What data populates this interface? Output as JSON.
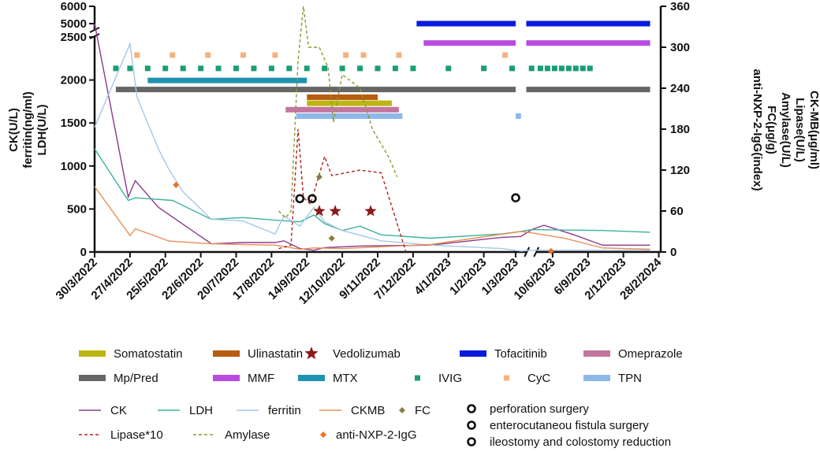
{
  "chart_data": {
    "type": "line",
    "title": "",
    "x_ticks": [
      "30/3/2022",
      "27/4/2022",
      "25/5/2022",
      "22/6/2022",
      "20/7/2022",
      "17/8/2022",
      "14/9/2022",
      "12/10/2022",
      "9/11/2022",
      "7/12/2022",
      "4/1/2023",
      "1/2/2023",
      "1/3/2023",
      "10/6/2023",
      "6/9/2023",
      "2/12/2023",
      "28/2/2024"
    ],
    "left_axis": {
      "label_lines": [
        "CK(U/L)",
        "ferritin(ng/ml)",
        "LDH(U/L)"
      ],
      "ticks": [
        0,
        500,
        1000,
        1500,
        2000,
        2500,
        5000,
        6000
      ],
      "break_between": [
        2500,
        5000
      ]
    },
    "right_axis": {
      "label_lines": [
        "CK-MB(μg/ml)",
        "Lipase(U/L)",
        "Amylase(U/L)",
        "FC(μg/g)",
        "anti-NXP-2-IgG(index)"
      ],
      "ticks": [
        0,
        60,
        120,
        180,
        240,
        300,
        360
      ]
    },
    "x_axis_break_between": [
      "1/3/2023",
      "10/6/2023"
    ],
    "series": [
      {
        "name": "CK",
        "axis": "left",
        "style": "solid",
        "color": "#8B3A8B",
        "points": [
          [
            0,
            2800
          ],
          [
            0.95,
            640
          ],
          [
            1.15,
            830
          ],
          [
            1.8,
            520
          ],
          [
            3.3,
            95
          ],
          [
            4.2,
            110
          ],
          [
            5.1,
            110
          ],
          [
            5.35,
            130
          ],
          [
            5.8,
            40
          ],
          [
            6.2,
            20
          ],
          [
            6.5,
            50
          ],
          [
            7.5,
            70
          ],
          [
            9.5,
            80
          ],
          [
            11.5,
            170
          ],
          [
            12.05,
            180
          ],
          [
            12.35,
            260
          ],
          [
            12.7,
            310
          ],
          [
            13.55,
            200
          ],
          [
            14.35,
            80
          ],
          [
            15.7,
            80
          ]
        ]
      },
      {
        "name": "LDH",
        "axis": "left",
        "style": "solid",
        "color": "#3CB39A",
        "points": [
          [
            0,
            1200
          ],
          [
            0.95,
            600
          ],
          [
            1.15,
            630
          ],
          [
            2.2,
            600
          ],
          [
            3.3,
            380
          ],
          [
            4.2,
            400
          ],
          [
            5.1,
            370
          ],
          [
            5.8,
            350
          ],
          [
            6.2,
            430
          ],
          [
            6.5,
            330
          ],
          [
            7.0,
            250
          ],
          [
            7.5,
            300
          ],
          [
            8.1,
            200
          ],
          [
            9.5,
            160
          ],
          [
            11.5,
            210
          ],
          [
            12.05,
            240
          ],
          [
            12.35,
            260
          ],
          [
            14.35,
            250
          ],
          [
            15.7,
            230
          ]
        ]
      },
      {
        "name": "ferritin",
        "axis": "left",
        "style": "solid",
        "color": "#A7C7E7",
        "points": [
          [
            0,
            1450
          ],
          [
            1.0,
            2420
          ],
          [
            1.2,
            1800
          ],
          [
            1.8,
            1200
          ],
          [
            2.1,
            960
          ],
          [
            2.5,
            700
          ],
          [
            3.3,
            380
          ],
          [
            4.2,
            360
          ],
          [
            5.1,
            210
          ],
          [
            5.35,
            420
          ],
          [
            5.8,
            300
          ],
          [
            6.2,
            520
          ],
          [
            6.5,
            350
          ],
          [
            7.0,
            250
          ],
          [
            8.1,
            130
          ],
          [
            9.5,
            80
          ],
          [
            11.5,
            40
          ],
          [
            12.05,
            10
          ],
          [
            12.35,
            20
          ],
          [
            14.35,
            20
          ],
          [
            15.7,
            20
          ]
        ]
      },
      {
        "name": "CKMB",
        "axis": "right",
        "style": "solid",
        "color": "#E8915A",
        "points": [
          [
            0,
            96
          ],
          [
            1.0,
            24
          ],
          [
            1.15,
            34
          ],
          [
            2.1,
            16
          ],
          [
            3.3,
            12
          ],
          [
            4.2,
            11
          ],
          [
            5.1,
            10
          ],
          [
            5.8,
            4
          ],
          [
            6.2,
            6
          ],
          [
            7.0,
            5
          ],
          [
            9.5,
            11
          ],
          [
            11.5,
            26
          ],
          [
            12.05,
            30
          ],
          [
            12.35,
            28
          ],
          [
            13.3,
            20
          ],
          [
            14.35,
            6
          ],
          [
            15.7,
            4
          ]
        ]
      },
      {
        "name": "Lipase*10",
        "axis": "right",
        "style": "dashed",
        "color": "#B22222",
        "points": [
          [
            5.2,
            5
          ],
          [
            5.55,
            10
          ],
          [
            5.75,
            180
          ],
          [
            5.9,
            80
          ],
          [
            6.1,
            70
          ],
          [
            6.5,
            140
          ],
          [
            6.7,
            112
          ],
          [
            7.5,
            120
          ],
          [
            8.1,
            116
          ],
          [
            8.5,
            50
          ],
          [
            8.8,
            0
          ]
        ]
      },
      {
        "name": "Amylase",
        "axis": "right",
        "style": "dashed",
        "color": "#8A9A2E",
        "points": [
          [
            5.2,
            60
          ],
          [
            5.4,
            50
          ],
          [
            5.55,
            60
          ],
          [
            5.75,
            280
          ],
          [
            5.9,
            360
          ],
          [
            6.05,
            300
          ],
          [
            6.35,
            300
          ],
          [
            6.6,
            270
          ],
          [
            6.75,
            190
          ],
          [
            7.0,
            260
          ],
          [
            7.5,
            240
          ],
          [
            7.85,
            180
          ],
          [
            8.3,
            140
          ],
          [
            8.55,
            110
          ]
        ]
      }
    ],
    "markers": [
      {
        "name": "Vedolizumab",
        "symbol": "star",
        "color": "#8B1A1A",
        "axis": "left",
        "points": [
          [
            6.35,
            475
          ],
          [
            6.8,
            475
          ],
          [
            7.8,
            475
          ]
        ]
      },
      {
        "name": "FC",
        "symbol": "diamond",
        "color": "#8B7D3A",
        "axis": "right",
        "points": [
          [
            6.35,
            110
          ],
          [
            6.7,
            20
          ]
        ]
      },
      {
        "name": "anti-NXP-2-IgG",
        "symbol": "diamond",
        "color": "#E8741E",
        "axis": "left",
        "points": [
          [
            2.3,
            780
          ],
          [
            12.9,
            10
          ]
        ]
      },
      {
        "name": "surgery",
        "symbol": "ring",
        "color": "#111111",
        "axis": "left",
        "points": [
          [
            5.8,
            620
          ],
          [
            6.15,
            620
          ],
          [
            11.9,
            630
          ]
        ]
      }
    ],
    "bars": [
      {
        "name": "Tofacitinib",
        "color": "#0A1ADB",
        "segments": [
          [
            9.1,
            11.9
          ],
          [
            12.2,
            15.7
          ]
        ],
        "y": 2510
      },
      {
        "name": "MMF",
        "color": "#B84CE0",
        "segments": [
          [
            9.3,
            11.9
          ],
          [
            12.2,
            15.7
          ]
        ],
        "y": 2430
      },
      {
        "name": "MTX",
        "color": "#1E93B0",
        "segments": [
          [
            1.5,
            6.0
          ]
        ],
        "y": 1995
      },
      {
        "name": "Mp/Pred",
        "color": "#666666",
        "segments": [
          [
            0.6,
            11.9
          ],
          [
            12.2,
            15.7
          ]
        ],
        "y": 1890
      },
      {
        "name": "Ulinastatin",
        "color": "#B85C10",
        "segments": [
          [
            6.0,
            8.0
          ]
        ],
        "y": 1800
      },
      {
        "name": "Somatostatin",
        "color": "#BDB514",
        "segments": [
          [
            6.0,
            8.4
          ]
        ],
        "y": 1730
      },
      {
        "name": "Omeprazole",
        "color": "#C2769E",
        "segments": [
          [
            5.4,
            8.6
          ]
        ],
        "y": 1655
      },
      {
        "name": "TPN",
        "color": "#8DB8EA",
        "segments": [
          [
            5.7,
            8.7
          ],
          [
            11.9,
            12.05
          ]
        ],
        "y": 1580
      }
    ],
    "dose_markers": [
      {
        "name": "IVIG",
        "color": "#1A9E75",
        "y": 2135,
        "x": [
          0.6,
          1.0,
          1.5,
          2.0,
          2.5,
          3.0,
          3.5,
          4.0,
          4.5,
          5.0,
          5.5,
          6.0,
          6.5,
          7.0,
          7.5,
          8.0,
          8.5,
          9.0,
          10.0,
          11.0,
          11.8,
          12.35,
          12.6,
          12.8,
          13.0,
          13.2,
          13.4,
          13.6,
          13.8,
          14.0
        ]
      },
      {
        "name": "CyC",
        "color": "#F5B27E",
        "y": 2290,
        "x": [
          1.2,
          2.2,
          3.2,
          4.2,
          5.1,
          7.1,
          7.6,
          8.6,
          11.6
        ]
      }
    ],
    "legend_treatments": [
      "Somatostatin",
      "Ulinastatin",
      "Vedolizumab",
      "Tofacitinib",
      "Omeprazole",
      "Mp/Pred",
      "MMF",
      "MTX",
      "IVIG",
      "CyC",
      "TPN"
    ],
    "legend_labs": [
      "CK",
      "LDH",
      "ferritin",
      "CKMB",
      "FC",
      "Lipase*10",
      "Amylase",
      "anti-NXP-2-IgG"
    ],
    "legend_surgeries": [
      "perforation surgery",
      "enterocutaneou fistula surgery",
      "ileostomy and colostomy reduction"
    ]
  }
}
